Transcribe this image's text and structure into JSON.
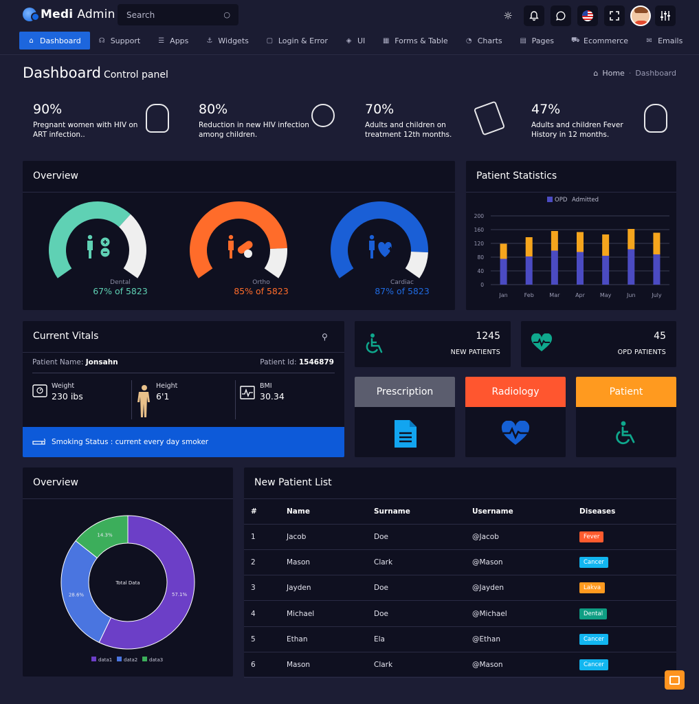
{
  "app": {
    "brand_bold": "Medi",
    "brand_rest": "Admin",
    "search_placeholder": "Search"
  },
  "nav": [
    {
      "label": "Dashboard",
      "icon": "home-icon",
      "glyph": "⌂",
      "active": true
    },
    {
      "label": "Support",
      "icon": "headset-icon",
      "glyph": "☊"
    },
    {
      "label": "Apps",
      "icon": "database-icon",
      "glyph": "☰"
    },
    {
      "label": "Widgets",
      "icon": "anchor-icon",
      "glyph": "⚓"
    },
    {
      "label": "Login & Error",
      "icon": "lock-icon",
      "glyph": "▢"
    },
    {
      "label": "UI",
      "icon": "cube-icon",
      "glyph": "◈"
    },
    {
      "label": "Forms & Table",
      "icon": "table-icon",
      "glyph": "▦"
    },
    {
      "label": "Charts",
      "icon": "pie-icon",
      "glyph": "◔"
    },
    {
      "label": "Pages",
      "icon": "file-icon",
      "glyph": "▤"
    },
    {
      "label": "Ecommerce",
      "icon": "cart-icon",
      "glyph": "⛟"
    },
    {
      "label": "Emails",
      "icon": "mail-icon",
      "glyph": "✉"
    }
  ],
  "page": {
    "title": "Dashboard",
    "subtitle": "Control panel",
    "breadcrumb_home": "Home",
    "breadcrumb_current": "Dashboard"
  },
  "stats": [
    {
      "pct": "90%",
      "desc": "Pregnant women with HIV on ART infection..",
      "color": "#0f9e83"
    },
    {
      "pct": "80%",
      "desc": "Reduction in new HIV infection among children.",
      "color": "#4cae4c"
    },
    {
      "pct": "70%",
      "desc": "Adults and children on treatment 12th months.",
      "color": "#0d5ad9"
    },
    {
      "pct": "47%",
      "desc": "Adults and children Fever History in 12 months.",
      "color": "#ff5b2e"
    }
  ],
  "overview": {
    "title": "Overview",
    "gauges": [
      {
        "label": "Dental",
        "value_text": "67% of 5823",
        "fraction": 0.67,
        "color": "#5fd1b4"
      },
      {
        "label": "Ortho",
        "value_text": "85% of 5823",
        "fraction": 0.85,
        "color": "#ff6c2a"
      },
      {
        "label": "Cardiac",
        "value_text": "87% of 5823",
        "fraction": 0.87,
        "color": "#1a5fd6"
      }
    ]
  },
  "patient_stats": {
    "title": "Patient Statistics",
    "chart_data": {
      "type": "bar",
      "stacked": true,
      "categories": [
        "Jan",
        "Feb",
        "Mar",
        "Apr",
        "May",
        "Jun",
        "July"
      ],
      "series": [
        {
          "name": "OPD",
          "color": "#4b4bc2",
          "values": [
            75,
            82,
            99,
            95,
            84,
            103,
            88
          ]
        },
        {
          "name": "Admitted",
          "color": "#f5a51d",
          "values": [
            44,
            56,
            57,
            58,
            62,
            59,
            63
          ]
        }
      ],
      "yticks": [
        0,
        40,
        80,
        120,
        160,
        200
      ],
      "ylim": [
        0,
        200
      ],
      "legend": "top-center",
      "grid": true
    }
  },
  "vitals": {
    "title": "Current Vitals",
    "patient_name_label": "Patient Name:",
    "patient_name": "Jonsahn",
    "patient_id_label": "Patient Id:",
    "patient_id": "1546879",
    "weight_label": "Weight",
    "weight": "230 ibs",
    "height_label": "Height",
    "height": "6'1",
    "bmi_label": "BMI",
    "bmi": "30.34",
    "smoking": "Smoking Status : current every day smoker"
  },
  "mini": [
    {
      "value": "1245",
      "label": "NEW PATIENTS"
    },
    {
      "value": "45",
      "label": "OPD PATIENTS"
    }
  ],
  "tiles": [
    {
      "label": "Prescription",
      "color": "#5b5d6e"
    },
    {
      "label": "Radiology",
      "color": "#ff562f"
    },
    {
      "label": "Patient",
      "color": "#ff9a1f"
    }
  ],
  "donut": {
    "title": "Overview",
    "chart_data": {
      "type": "pie",
      "donut": true,
      "center_label": "Total Data",
      "slices": [
        {
          "name": "data1",
          "value": 57.1,
          "label": "57.1%",
          "color": "#6c3fc7"
        },
        {
          "name": "data2",
          "value": 28.6,
          "label": "28.6%",
          "color": "#4a75e0"
        },
        {
          "name": "data3",
          "value": 14.3,
          "label": "14.3%",
          "color": "#3cae5b"
        }
      ],
      "legend": "bottom"
    }
  },
  "patients": {
    "title": "New Patient List",
    "columns": [
      "#",
      "Name",
      "Surname",
      "Username",
      "Diseases"
    ],
    "rows": [
      {
        "n": "1",
        "name": "Jacob",
        "surname": "Doe",
        "username": "@Jacob",
        "disease": "Fever",
        "color": "#ff5b2e"
      },
      {
        "n": "2",
        "name": "Mason",
        "surname": "Clark",
        "username": "@Mason",
        "disease": "Cancer",
        "color": "#12b6f0"
      },
      {
        "n": "3",
        "name": "Jayden",
        "surname": "Doe",
        "username": "@Jayden",
        "disease": "Lakva",
        "color": "#ff9a1f"
      },
      {
        "n": "4",
        "name": "Michael",
        "surname": "Doe",
        "username": "@Michael",
        "disease": "Dental",
        "color": "#0f9e83"
      },
      {
        "n": "5",
        "name": "Ethan",
        "surname": "Ela",
        "username": "@Ethan",
        "disease": "Cancer",
        "color": "#12b6f0"
      },
      {
        "n": "6",
        "name": "Mason",
        "surname": "Clark",
        "username": "@Mason",
        "disease": "Cancer",
        "color": "#12b6f0"
      }
    ]
  }
}
